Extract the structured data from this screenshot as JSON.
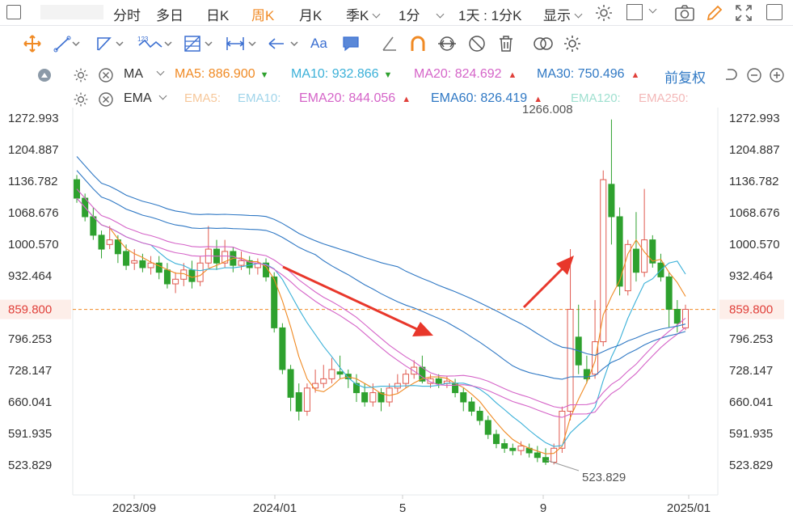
{
  "topbar": {
    "items": [
      "分时",
      "多日",
      "日K",
      "周K",
      "月K",
      "季K",
      "1分",
      "1天 : 1分K",
      "显示"
    ],
    "active": "周K"
  },
  "indicators": {
    "ma": {
      "name": "MA",
      "ma5": {
        "label": "MA5: 886.900",
        "color": "#f08a24",
        "trend": "down"
      },
      "ma10": {
        "label": "MA10: 932.866",
        "color": "#3ab0d8",
        "trend": "down"
      },
      "ma20": {
        "label": "MA20: 824.692",
        "color": "#d564c8",
        "trend": "up"
      },
      "ma30": {
        "label": "MA30: 750.496",
        "color": "#2f78c4",
        "trend": "up"
      },
      "adjust": "前复权"
    },
    "ema": {
      "name": "EMA",
      "ema5": {
        "label": "EMA5:",
        "color": "#f6c79a"
      },
      "ema10": {
        "label": "EMA10:",
        "color": "#9fd4ea"
      },
      "ema20": {
        "label": "EMA20: 844.056",
        "color": "#d564c8",
        "trend": "up"
      },
      "ema60": {
        "label": "EMA60: 826.419",
        "color": "#2f78c4",
        "trend": "up"
      },
      "ema120": {
        "label": "EMA120:",
        "color": "#9fe0d0"
      },
      "ema250": {
        "label": "EMA250:",
        "color": "#f3b8b8"
      }
    }
  },
  "y_axis": {
    "ticks": [
      "1272.993",
      "1204.887",
      "1136.782",
      "1068.676",
      "1000.570",
      "932.464",
      "859.800",
      "796.253",
      "728.147",
      "660.041",
      "591.935",
      "523.829"
    ],
    "current_price": "859.800"
  },
  "x_axis": {
    "ticks": [
      "2023/09",
      "2024/01",
      "5",
      "9",
      "2025/01"
    ]
  },
  "annotations": {
    "high": "1266.008",
    "low": "523.829"
  },
  "colors": {
    "up": "#e05a4f",
    "down": "#2ea12e",
    "current_line": "#f08a24",
    "arrow": "#e8372b"
  },
  "chart_data": {
    "type": "candlestick",
    "ylim": [
      490,
      1300
    ],
    "candles": [
      [
        1140,
        1100,
        1150,
        1090
      ],
      [
        1100,
        1060,
        1110,
        1050
      ],
      [
        1060,
        1020,
        1080,
        1010
      ],
      [
        1020,
        990,
        1030,
        970
      ],
      [
        1000,
        1010,
        1040,
        990
      ],
      [
        1010,
        980,
        1020,
        960
      ],
      [
        985,
        955,
        1000,
        945
      ],
      [
        960,
        965,
        990,
        945
      ],
      [
        965,
        950,
        980,
        940
      ],
      [
        950,
        960,
        975,
        935
      ],
      [
        960,
        940,
        975,
        925
      ],
      [
        945,
        915,
        960,
        905
      ],
      [
        915,
        925,
        940,
        895
      ],
      [
        925,
        945,
        960,
        910
      ],
      [
        945,
        920,
        965,
        905
      ],
      [
        920,
        960,
        975,
        910
      ],
      [
        960,
        990,
        1040,
        950
      ],
      [
        990,
        960,
        1010,
        945
      ],
      [
        960,
        985,
        1010,
        950
      ],
      [
        985,
        955,
        995,
        940
      ],
      [
        955,
        965,
        985,
        945
      ],
      [
        965,
        950,
        975,
        935
      ],
      [
        950,
        960,
        970,
        935
      ],
      [
        960,
        930,
        970,
        920
      ],
      [
        930,
        820,
        940,
        810
      ],
      [
        820,
        730,
        830,
        720
      ],
      [
        730,
        670,
        740,
        640
      ],
      [
        680,
        640,
        700,
        620
      ],
      [
        640,
        690,
        700,
        630
      ],
      [
        690,
        700,
        730,
        680
      ],
      [
        700,
        710,
        740,
        690
      ],
      [
        710,
        730,
        755,
        700
      ],
      [
        725,
        720,
        760,
        710
      ],
      [
        720,
        710,
        730,
        690
      ],
      [
        700,
        680,
        720,
        660
      ],
      [
        680,
        660,
        700,
        650
      ],
      [
        660,
        680,
        700,
        650
      ],
      [
        680,
        660,
        690,
        640
      ],
      [
        660,
        690,
        700,
        650
      ],
      [
        690,
        700,
        720,
        680
      ],
      [
        700,
        720,
        730,
        690
      ],
      [
        720,
        735,
        750,
        710
      ],
      [
        735,
        705,
        760,
        700
      ],
      [
        700,
        710,
        720,
        690
      ],
      [
        710,
        700,
        720,
        690
      ],
      [
        700,
        705,
        715,
        690
      ],
      [
        700,
        680,
        710,
        670
      ],
      [
        680,
        660,
        690,
        640
      ],
      [
        660,
        640,
        670,
        630
      ],
      [
        640,
        620,
        650,
        610
      ],
      [
        620,
        590,
        630,
        580
      ],
      [
        590,
        570,
        600,
        560
      ],
      [
        570,
        560,
        580,
        550
      ],
      [
        560,
        555,
        570,
        545
      ],
      [
        555,
        565,
        575,
        545
      ],
      [
        560,
        550,
        570,
        540
      ],
      [
        550,
        540,
        565,
        530
      ],
      [
        540,
        530,
        560,
        524
      ],
      [
        530,
        560,
        570,
        525
      ],
      [
        560,
        640,
        650,
        550
      ],
      [
        640,
        860,
        990,
        620
      ],
      [
        800,
        740,
        870,
        720
      ],
      [
        730,
        710,
        760,
        700
      ],
      [
        720,
        790,
        880,
        710
      ],
      [
        790,
        1140,
        1160,
        780
      ],
      [
        1130,
        1060,
        1270,
        1000
      ],
      [
        1060,
        910,
        1080,
        890
      ],
      [
        900,
        1000,
        1010,
        890
      ],
      [
        990,
        940,
        1070,
        920
      ],
      [
        940,
        1010,
        1120,
        930
      ],
      [
        1010,
        960,
        1020,
        950
      ],
      [
        960,
        930,
        980,
        920
      ],
      [
        930,
        860,
        940,
        820
      ],
      [
        860,
        830,
        880,
        810
      ],
      [
        820,
        860,
        870,
        815
      ]
    ]
  }
}
